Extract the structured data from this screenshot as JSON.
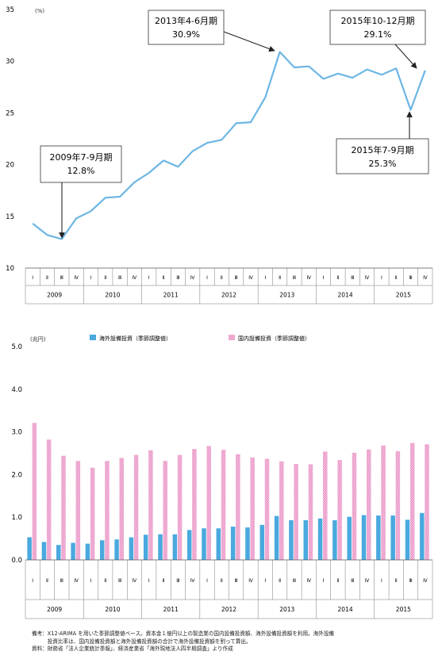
{
  "chart_data": [
    {
      "type": "line",
      "ylabel": "(%)",
      "ylim": [
        10,
        35
      ],
      "yticks": [
        10,
        15,
        20,
        25,
        30,
        35
      ],
      "quarters": [
        "Ⅰ",
        "Ⅱ",
        "Ⅲ",
        "Ⅳ"
      ],
      "years": [
        "2009",
        "2010",
        "2011",
        "2012",
        "2013",
        "2014",
        "2015"
      ],
      "series": [
        {
          "color": "#6cb6e4",
          "values": [
            14.3,
            13.2,
            12.8,
            14.8,
            15.5,
            16.8,
            16.9,
            18.3,
            19.2,
            20.4,
            19.8,
            21.3,
            22.1,
            22.4,
            24.0,
            24.1,
            26.5,
            30.9,
            29.4,
            29.5,
            28.3,
            28.8,
            28.4,
            29.2,
            28.7,
            29.3,
            25.3,
            29.1
          ]
        }
      ],
      "annotations": [
        {
          "line1": "2009年7-9月期",
          "line2": "12.8%",
          "index": 2
        },
        {
          "line1": "2013年4-6月期",
          "line2": "30.9%",
          "index": 17
        },
        {
          "line1": "2015年10-12月期",
          "line2": "29.1%",
          "index": 27
        },
        {
          "line1": "2015年7-9月期",
          "line2": "25.3%",
          "index": 26
        }
      ]
    },
    {
      "type": "bar",
      "ylabel": "(兆円)",
      "ylim": [
        0,
        5
      ],
      "yticks": [
        "0.0",
        "1.0",
        "2.0",
        "3.0",
        "4.0",
        "5.0"
      ],
      "quarters": [
        "Ⅰ",
        "Ⅱ",
        "Ⅲ",
        "Ⅳ"
      ],
      "years": [
        "2009",
        "2010",
        "2011",
        "2012",
        "2013",
        "2014",
        "2015"
      ],
      "series": [
        {
          "name": "海外設備投資（季節調整値）",
          "color": "#4aa9de",
          "values": [
            0.53,
            0.42,
            0.35,
            0.4,
            0.38,
            0.46,
            0.48,
            0.53,
            0.59,
            0.6,
            0.6,
            0.7,
            0.74,
            0.74,
            0.78,
            0.76,
            0.82,
            1.03,
            0.93,
            0.93,
            0.97,
            0.93,
            1.01,
            1.05,
            1.04,
            1.04,
            0.94,
            1.1
          ]
        },
        {
          "name": "国内設備投資（季節調整値）",
          "color": "#f0a8d2",
          "values": [
            3.21,
            2.82,
            2.44,
            2.32,
            2.16,
            2.32,
            2.39,
            2.46,
            2.57,
            2.32,
            2.46,
            2.6,
            2.67,
            2.58,
            2.48,
            2.4,
            2.37,
            2.31,
            2.25,
            2.24,
            2.54,
            2.34,
            2.51,
            2.59,
            2.68,
            2.55,
            2.74,
            2.71
          ]
        }
      ]
    }
  ],
  "notes": {
    "line1": "備考：X12-ARIMA を用いた季節調整値ベース。資本金１億円以上の製造業の国内設備投資額、海外設備投資額を利用。海外設備",
    "line2": "　　　投資比率は、国内設備投資額と海外設備投資額の合計で海外設備投資額を割って算出。",
    "line3": "資料：財務省「法人企業統計季報」、経済産業省「海外現地法人四半期調査」より作成"
  }
}
